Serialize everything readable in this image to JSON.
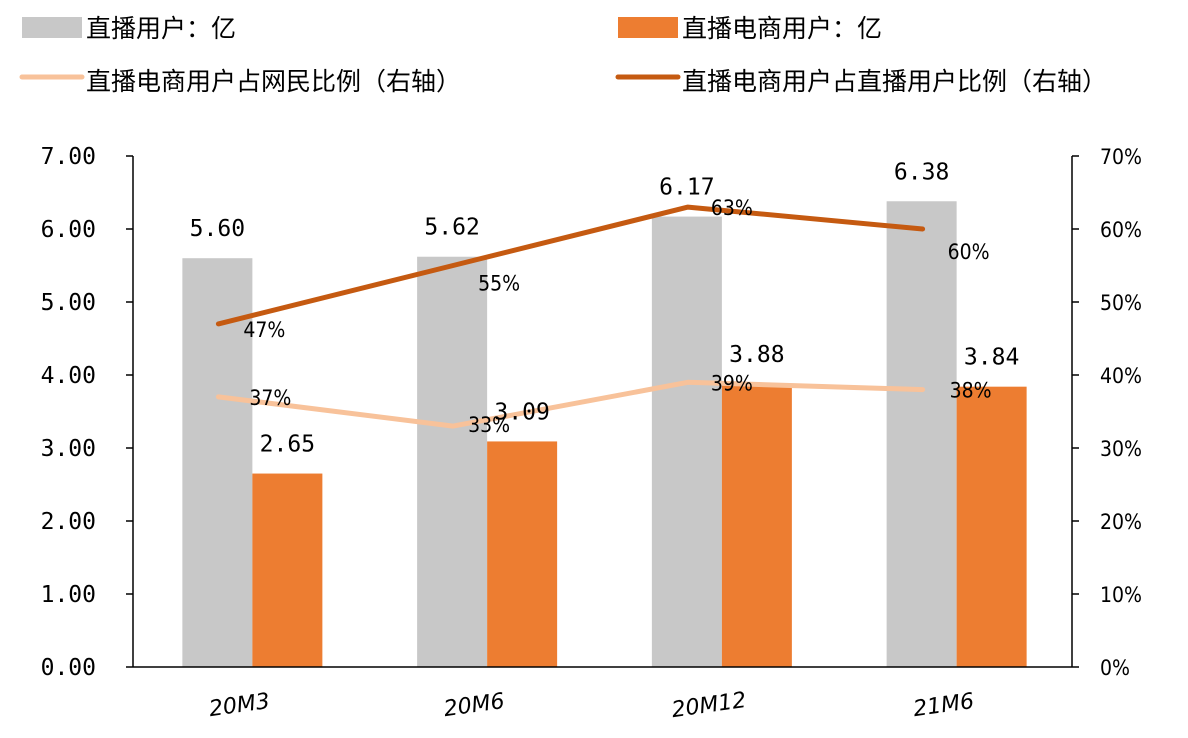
{
  "chart_data": {
    "type": "bar",
    "categories": [
      "20M3",
      "20M6",
      "20M12",
      "21M6"
    ],
    "series": [
      {
        "name": "直播用户：亿",
        "kind": "bar",
        "axis": "left",
        "color": "#c8c8c8",
        "values": [
          5.6,
          5.62,
          6.17,
          6.38
        ],
        "labels": [
          "5.60",
          "5.62",
          "6.17",
          "6.38"
        ]
      },
      {
        "name": "直播电商用户：亿",
        "kind": "bar",
        "axis": "left",
        "color": "#ed7d31",
        "values": [
          2.65,
          3.09,
          3.88,
          3.84
        ],
        "labels": [
          "2.65",
          "3.09",
          "3.88",
          "3.84"
        ]
      },
      {
        "name": "直播电商用户占网民比例（右轴）",
        "kind": "line",
        "axis": "right",
        "color": "#f8c29a",
        "values": [
          37,
          33,
          39,
          38
        ],
        "labels": [
          "37%",
          "33%",
          "39%",
          "38%"
        ]
      },
      {
        "name": "直播电商用户占直播用户比例（右轴）",
        "kind": "line",
        "axis": "right",
        "color": "#c55a11",
        "values": [
          47,
          55,
          63,
          60
        ],
        "labels": [
          "47%",
          "55%",
          "63%",
          "60%"
        ]
      }
    ],
    "y_left": {
      "ylim": [
        0,
        7
      ],
      "ticks": [
        "0.00",
        "1.00",
        "2.00",
        "3.00",
        "4.00",
        "5.00",
        "6.00",
        "7.00"
      ]
    },
    "y_right": {
      "ylim": [
        0,
        70
      ],
      "ticks": [
        "0%",
        "10%",
        "20%",
        "30%",
        "40%",
        "50%",
        "60%",
        "70%"
      ]
    },
    "legend_position": "top",
    "grid": false
  }
}
